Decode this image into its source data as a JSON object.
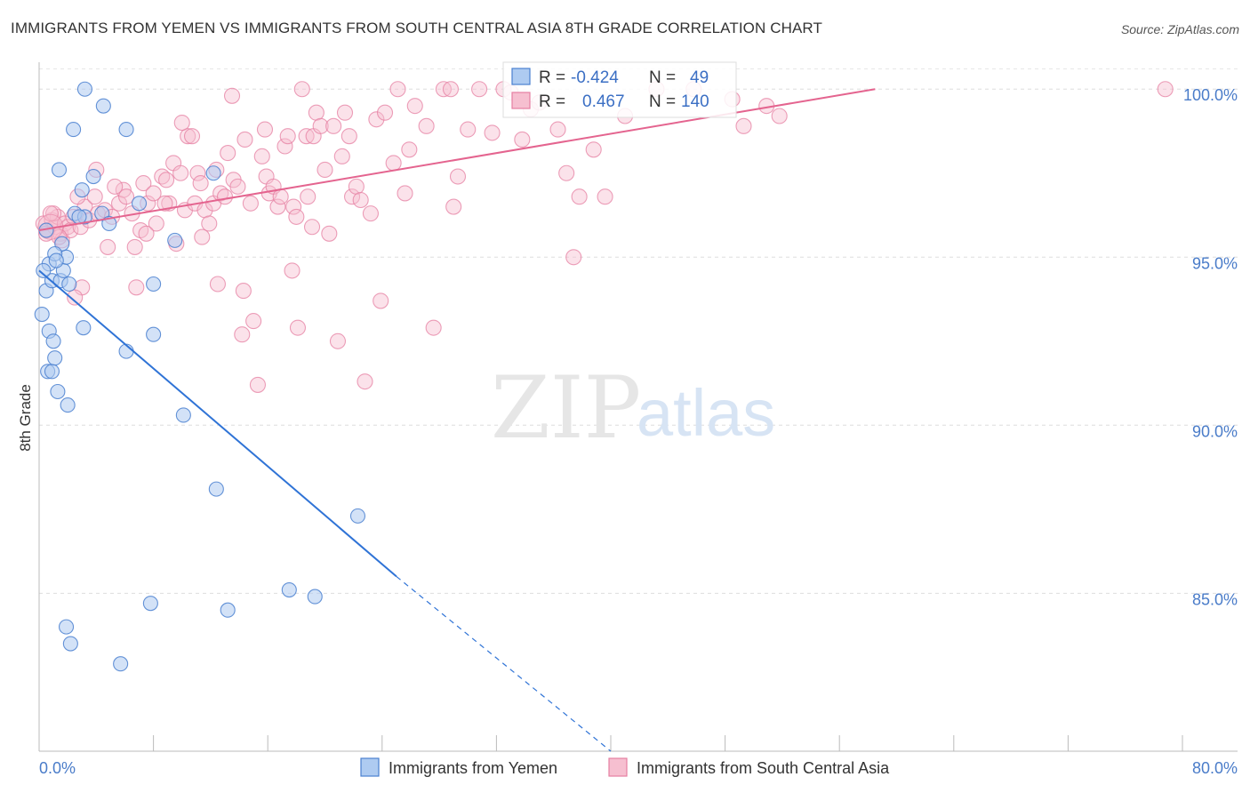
{
  "header": {
    "title": "IMMIGRANTS FROM YEMEN VS IMMIGRANTS FROM SOUTH CENTRAL ASIA 8TH GRADE CORRELATION CHART",
    "source": "Source: ZipAtlas.com"
  },
  "watermark": {
    "zip": "ZIP",
    "atlas": "atlas"
  },
  "legend": {
    "r_label": "R =",
    "n_label": "N =",
    "rows": [
      {
        "r": "-0.424",
        "n": "49"
      },
      {
        "r": "0.467",
        "n": "140"
      }
    ]
  },
  "colors": {
    "yemen_fill": "#aecbf1",
    "yemen_stroke": "#4a80d0",
    "yemen_line": "#2f73d6",
    "asia_fill": "#f6bfd0",
    "asia_stroke": "#e57fa2",
    "asia_line": "#e4648f",
    "tick_text": "#4a7cc9"
  },
  "chart_data": {
    "type": "scatter",
    "title": "IMMIGRANTS FROM YEMEN VS IMMIGRANTS FROM SOUTH CENTRAL ASIA 8TH GRADE CORRELATION CHART",
    "xlabel": "",
    "ylabel": "8th Grade",
    "xlim": [
      0,
      80
    ],
    "ylim": [
      80.3,
      100.8
    ],
    "x_tick_labels": [
      "0.0%",
      "80.0%"
    ],
    "y_ticks": [
      85,
      90,
      95,
      100
    ],
    "y_tick_labels": [
      "85.0%",
      "90.0%",
      "95.0%",
      "100.0%"
    ],
    "grid": true,
    "legend_position": "top-center",
    "series": [
      {
        "name": "Immigrants from Yemen",
        "R": -0.424,
        "N": 49,
        "trend": {
          "x0": 0,
          "y0": 94.6,
          "x1": 25,
          "y1": 85.5,
          "dashed_to_x": 40,
          "dashed_to_y": 80.3
        },
        "points": [
          [
            0.2,
            93.3
          ],
          [
            0.5,
            94.0
          ],
          [
            0.7,
            94.8
          ],
          [
            0.9,
            94.3
          ],
          [
            0.7,
            92.8
          ],
          [
            1.0,
            92.5
          ],
          [
            0.6,
            91.6
          ],
          [
            0.9,
            91.6
          ],
          [
            1.1,
            92.0
          ],
          [
            1.3,
            91.0
          ],
          [
            1.5,
            94.3
          ],
          [
            1.7,
            94.6
          ],
          [
            1.9,
            95.0
          ],
          [
            2.1,
            94.2
          ],
          [
            1.6,
            95.4
          ],
          [
            1.1,
            95.1
          ],
          [
            2.0,
            90.6
          ],
          [
            1.4,
            97.6
          ],
          [
            2.5,
            96.3
          ],
          [
            3.1,
            92.9
          ],
          [
            3.0,
            97.0
          ],
          [
            3.2,
            96.2
          ],
          [
            3.8,
            97.4
          ],
          [
            4.4,
            96.3
          ],
          [
            4.9,
            96.0
          ],
          [
            3.2,
            100.0
          ],
          [
            4.5,
            99.5
          ],
          [
            2.4,
            98.8
          ],
          [
            6.1,
            98.8
          ],
          [
            7.0,
            96.6
          ],
          [
            6.1,
            92.2
          ],
          [
            8.0,
            92.7
          ],
          [
            8.0,
            94.2
          ],
          [
            9.5,
            95.5
          ],
          [
            10.1,
            90.3
          ],
          [
            12.2,
            97.5
          ],
          [
            12.4,
            88.1
          ],
          [
            13.2,
            84.5
          ],
          [
            17.5,
            85.1
          ],
          [
            19.3,
            84.9
          ],
          [
            22.3,
            87.3
          ],
          [
            7.8,
            84.7
          ],
          [
            1.9,
            84.0
          ],
          [
            2.2,
            83.5
          ],
          [
            5.7,
            82.9
          ],
          [
            0.5,
            95.8
          ],
          [
            1.2,
            94.9
          ],
          [
            2.8,
            96.2
          ],
          [
            0.3,
            94.6
          ]
        ]
      },
      {
        "name": "Immigrants from South Central Asia",
        "R": 0.467,
        "N": 140,
        "trend": {
          "x0": 0,
          "y0": 95.8,
          "x1": 58.5,
          "y1": 100.0
        },
        "points": [
          [
            0.3,
            96.0
          ],
          [
            0.6,
            95.8
          ],
          [
            0.9,
            96.1
          ],
          [
            1.1,
            95.9
          ],
          [
            1.3,
            96.2
          ],
          [
            1.5,
            95.7
          ],
          [
            1.8,
            96.0
          ],
          [
            2.0,
            95.9
          ],
          [
            0.5,
            95.7
          ],
          [
            1.0,
            96.3
          ],
          [
            1.6,
            95.5
          ],
          [
            2.2,
            95.8
          ],
          [
            2.4,
            96.2
          ],
          [
            2.9,
            95.9
          ],
          [
            3.2,
            96.5
          ],
          [
            3.5,
            96.1
          ],
          [
            3.9,
            96.8
          ],
          [
            4.1,
            96.3
          ],
          [
            4.6,
            96.4
          ],
          [
            4.8,
            95.3
          ],
          [
            5.1,
            96.2
          ],
          [
            5.6,
            96.6
          ],
          [
            5.9,
            97.0
          ],
          [
            6.1,
            96.8
          ],
          [
            6.5,
            96.3
          ],
          [
            6.7,
            95.3
          ],
          [
            7.1,
            95.8
          ],
          [
            7.3,
            97.2
          ],
          [
            7.6,
            96.6
          ],
          [
            8.0,
            96.9
          ],
          [
            8.2,
            96.0
          ],
          [
            8.6,
            97.4
          ],
          [
            8.9,
            97.3
          ],
          [
            9.1,
            96.6
          ],
          [
            9.4,
            97.8
          ],
          [
            9.6,
            95.4
          ],
          [
            9.9,
            97.5
          ],
          [
            10.2,
            96.4
          ],
          [
            10.4,
            98.6
          ],
          [
            10.7,
            98.6
          ],
          [
            10.9,
            96.6
          ],
          [
            11.1,
            97.5
          ],
          [
            11.4,
            95.6
          ],
          [
            11.6,
            96.4
          ],
          [
            11.9,
            96.0
          ],
          [
            12.2,
            96.6
          ],
          [
            12.4,
            97.6
          ],
          [
            12.7,
            96.9
          ],
          [
            13.0,
            96.8
          ],
          [
            13.2,
            98.1
          ],
          [
            13.6,
            97.3
          ],
          [
            13.9,
            97.1
          ],
          [
            14.2,
            92.7
          ],
          [
            14.3,
            94.0
          ],
          [
            14.4,
            98.5
          ],
          [
            14.8,
            96.6
          ],
          [
            15.0,
            93.1
          ],
          [
            15.3,
            91.2
          ],
          [
            15.6,
            98.0
          ],
          [
            15.9,
            97.4
          ],
          [
            16.1,
            96.9
          ],
          [
            16.4,
            97.1
          ],
          [
            16.7,
            96.5
          ],
          [
            16.9,
            96.8
          ],
          [
            17.2,
            98.3
          ],
          [
            17.4,
            98.6
          ],
          [
            17.7,
            94.6
          ],
          [
            17.8,
            96.5
          ],
          [
            18.1,
            92.9
          ],
          [
            18.4,
            100.0
          ],
          [
            18.7,
            98.6
          ],
          [
            18.8,
            96.8
          ],
          [
            19.1,
            95.9
          ],
          [
            19.2,
            98.6
          ],
          [
            19.4,
            99.3
          ],
          [
            19.7,
            98.9
          ],
          [
            20.0,
            97.6
          ],
          [
            20.3,
            95.7
          ],
          [
            20.6,
            98.9
          ],
          [
            20.9,
            92.5
          ],
          [
            21.2,
            98.0
          ],
          [
            21.4,
            99.3
          ],
          [
            21.7,
            98.6
          ],
          [
            21.9,
            96.8
          ],
          [
            22.2,
            97.1
          ],
          [
            22.5,
            96.7
          ],
          [
            22.8,
            91.3
          ],
          [
            23.2,
            96.3
          ],
          [
            23.6,
            99.1
          ],
          [
            23.9,
            93.7
          ],
          [
            24.2,
            99.3
          ],
          [
            24.8,
            97.8
          ],
          [
            25.1,
            100.0
          ],
          [
            25.6,
            96.9
          ],
          [
            25.9,
            98.2
          ],
          [
            26.3,
            99.5
          ],
          [
            27.1,
            98.9
          ],
          [
            27.6,
            92.9
          ],
          [
            28.3,
            100.0
          ],
          [
            28.8,
            100.0
          ],
          [
            29.0,
            96.5
          ],
          [
            29.3,
            97.4
          ],
          [
            30.0,
            98.8
          ],
          [
            30.8,
            100.0
          ],
          [
            31.7,
            98.7
          ],
          [
            32.5,
            100.0
          ],
          [
            33.0,
            99.9
          ],
          [
            33.8,
            98.5
          ],
          [
            34.4,
            99.4
          ],
          [
            35.0,
            99.6
          ],
          [
            36.3,
            98.8
          ],
          [
            36.9,
            97.5
          ],
          [
            37.4,
            95.0
          ],
          [
            37.8,
            96.8
          ],
          [
            38.8,
            98.2
          ],
          [
            39.6,
            96.8
          ],
          [
            41.0,
            99.2
          ],
          [
            43.2,
            100.0
          ],
          [
            45.8,
            100.0
          ],
          [
            48.5,
            99.7
          ],
          [
            49.3,
            98.9
          ],
          [
            50.9,
            99.5
          ],
          [
            51.8,
            99.2
          ],
          [
            78.8,
            100.0
          ],
          [
            3.0,
            94.1
          ],
          [
            2.5,
            93.8
          ],
          [
            6.8,
            94.1
          ],
          [
            12.5,
            94.2
          ],
          [
            5.3,
            97.1
          ],
          [
            7.5,
            95.7
          ],
          [
            0.8,
            96.3
          ],
          [
            1.4,
            95.6
          ],
          [
            2.7,
            96.8
          ],
          [
            4.0,
            97.6
          ],
          [
            8.8,
            96.6
          ],
          [
            10.0,
            99.0
          ],
          [
            11.3,
            97.2
          ],
          [
            13.5,
            99.8
          ],
          [
            15.8,
            98.8
          ],
          [
            18.0,
            96.2
          ]
        ]
      }
    ]
  },
  "bottom_legend": {
    "items": [
      {
        "label": "Immigrants from Yemen"
      },
      {
        "label": "Immigrants from South Central Asia"
      }
    ]
  }
}
